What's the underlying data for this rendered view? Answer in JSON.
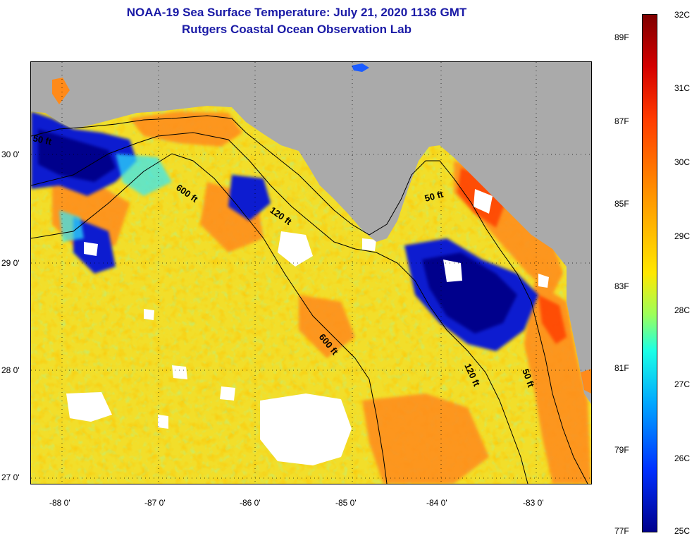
{
  "title": {
    "line1": "NOAA-19 Sea Surface Temperature:  July 21, 2020 1136 GMT",
    "line2": "Rutgers Coastal Ocean Observation Lab"
  },
  "map": {
    "latitude_labels": [
      "30 0'",
      "29 0'",
      "28 0'",
      "27 0'"
    ],
    "longitude_labels": [
      "-88 0'",
      "-87 0'",
      "-86 0'",
      "-85 0'",
      "-84 0'",
      "-83 0'"
    ],
    "contour_labels": [
      "50 ft",
      "600 ft",
      "120 ft",
      "50 ft",
      "600 ft",
      "120 ft",
      "50 ft"
    ],
    "colors": {
      "land": "#aaaaaa",
      "cloud": "#ffffff",
      "contour": "#000000"
    }
  },
  "colorbar": {
    "fahrenheit_labels": [
      "89F",
      "87F",
      "85F",
      "83F",
      "81F",
      "79F",
      "77F"
    ],
    "celsius_labels": [
      "32C",
      "31C",
      "30C",
      "29C",
      "28C",
      "27C",
      "26C",
      "25C"
    ],
    "color_stops": [
      "#7f0000",
      "#d40000",
      "#ff3a00",
      "#ff9500",
      "#ffe800",
      "#9cff5a",
      "#1affe6",
      "#00a8ff",
      "#0030ff",
      "#00008c"
    ]
  }
}
